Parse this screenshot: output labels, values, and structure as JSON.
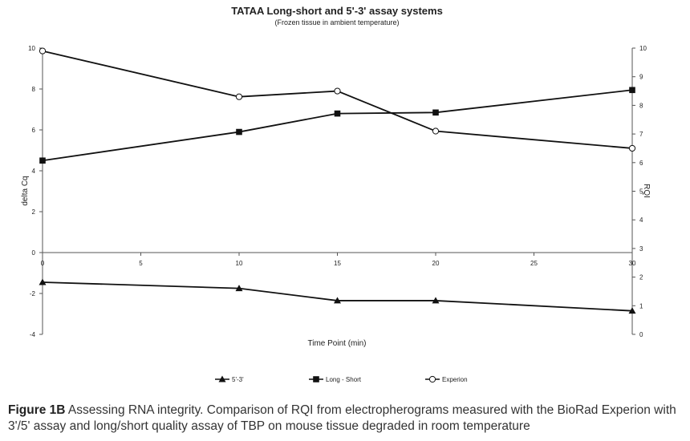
{
  "chart_data": {
    "type": "line",
    "title": "TATAA Long-short and 5'-3' assay systems",
    "subtitle": "(Frozen tissue in ambient temperature)",
    "xlabel": "Time Point (min)",
    "ylabel": "delta Cq",
    "y2label": "RQI",
    "xlim": [
      0,
      30
    ],
    "ylim": [
      -4,
      10
    ],
    "y2lim": [
      0,
      10
    ],
    "x_ticks": [
      "0",
      "5",
      "10",
      "15",
      "20",
      "25",
      "30"
    ],
    "y_ticks": [
      "-4",
      "-2",
      "0",
      "2",
      "4",
      "6",
      "8",
      "10"
    ],
    "y2_ticks": [
      "0",
      "1",
      "2",
      "3",
      "4",
      "5",
      "6",
      "7",
      "8",
      "9",
      "10"
    ],
    "legend_position": "bottom",
    "series": [
      {
        "name": "5'-3'",
        "axis": "left",
        "marker": "triangle",
        "x": [
          0,
          10,
          15,
          20,
          30
        ],
        "values": [
          -1.45,
          -1.75,
          -2.35,
          -2.35,
          -2.85
        ]
      },
      {
        "name": "Long - Short",
        "axis": "left",
        "marker": "square",
        "x": [
          0,
          10,
          15,
          20,
          30
        ],
        "values": [
          4.5,
          5.9,
          6.8,
          6.85,
          7.95
        ]
      },
      {
        "name": "Experion",
        "axis": "right",
        "marker": "circle-open",
        "x": [
          0,
          10,
          15,
          20,
          30
        ],
        "values": [
          9.9,
          8.3,
          8.5,
          7.1,
          6.5
        ]
      }
    ]
  },
  "caption": {
    "label": "Figure 1B",
    "text": " Assessing RNA integrity. Comparison of RQI from electropherograms measured with the BioRad Experion with 3'/5' assay and long/short quality assay of TBP on mouse tissue degraded in room temperature"
  }
}
